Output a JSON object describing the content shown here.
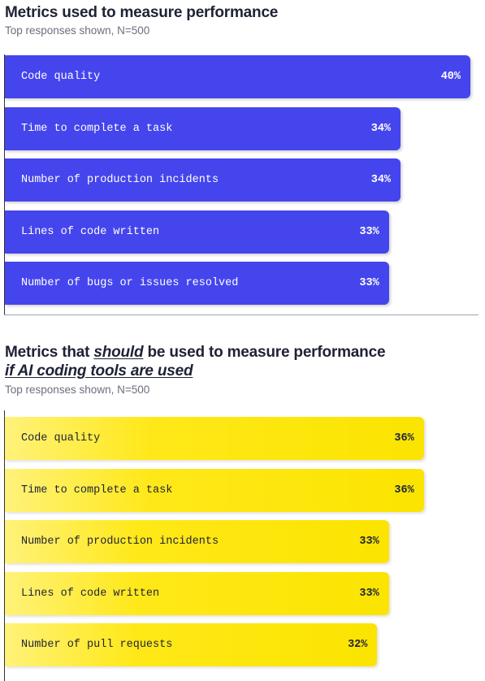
{
  "sections": [
    {
      "title": "Metrics used to measure performance",
      "subtitle": "Top responses shown, N=500"
    },
    {
      "title_part1": "Metrics that ",
      "title_emphasis": "should",
      "title_part2": " be used to measure performance",
      "title_line2": "if AI coding tools are used",
      "subtitle": "Top responses shown, N=500"
    }
  ],
  "colors": {
    "current": "#4545ee",
    "should": "#ffe818",
    "text": "#1f2235"
  },
  "chart_data": [
    {
      "type": "bar",
      "orientation": "horizontal",
      "title": "Metrics used to measure performance",
      "subtitle": "Top responses shown, N=500",
      "categories": [
        "Code quality",
        "Time to complete a task",
        "Number of production incidents",
        "Lines of code written",
        "Number of bugs or issues resolved"
      ],
      "values": [
        40,
        34,
        34,
        33,
        33
      ],
      "value_labels": [
        "40%",
        "34%",
        "34%",
        "33%",
        "33%"
      ],
      "xlim": [
        0,
        40
      ],
      "color": "#4545ee"
    },
    {
      "type": "bar",
      "orientation": "horizontal",
      "title": "Metrics that should be used to measure performance if AI coding tools are used",
      "subtitle": "Top responses shown, N=500",
      "categories": [
        "Code quality",
        "Time to complete a task",
        "Number of production incidents",
        "Lines of code written",
        "Number of pull requests"
      ],
      "values": [
        36,
        36,
        33,
        33,
        32
      ],
      "value_labels": [
        "36%",
        "36%",
        "33%",
        "33%",
        "32%"
      ],
      "xlim": [
        0,
        40
      ],
      "color": "#ffe818"
    }
  ]
}
